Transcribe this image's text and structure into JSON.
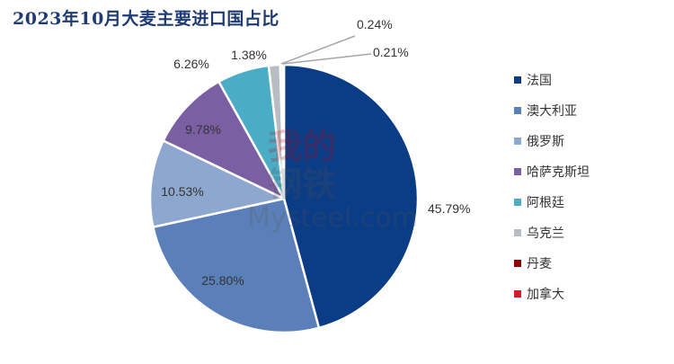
{
  "chart_data": {
    "type": "pie",
    "title": "2023年10月大麦主要进口国占比",
    "legend_position": "right",
    "slices": [
      {
        "name": "法国",
        "value": 45.79,
        "label": "45.79%",
        "color": "#0b3c86"
      },
      {
        "name": "澳大利亚",
        "value": 25.8,
        "label": "25.80%",
        "color": "#5b7fb8"
      },
      {
        "name": "俄罗斯",
        "value": 10.53,
        "label": "10.53%",
        "color": "#8ea7cf"
      },
      {
        "name": "哈萨克斯坦",
        "value": 9.78,
        "label": "9.78%",
        "color": "#7b5fa3"
      },
      {
        "name": "阿根廷",
        "value": 6.26,
        "label": "6.26%",
        "color": "#4bacc6"
      },
      {
        "name": "乌克兰",
        "value": 1.38,
        "label": "1.38%",
        "color": "#b8bdc4"
      },
      {
        "name": "丹麦",
        "value": 0.24,
        "label": "0.24%",
        "color": "#8b0000"
      },
      {
        "name": "加拿大",
        "value": 0.21,
        "label": "0.21%",
        "color": "#e0162b"
      }
    ]
  },
  "watermark": {
    "line1": "我的",
    "line2": "钢铁",
    "brand": "Mysteel.com"
  }
}
